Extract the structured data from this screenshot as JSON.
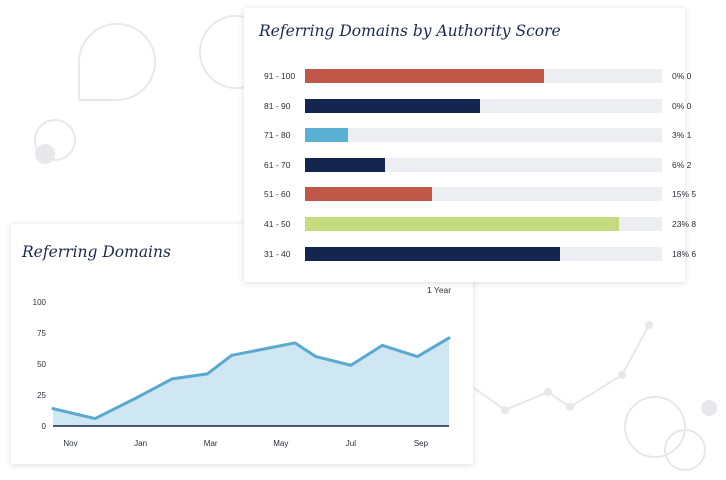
{
  "colors": {
    "salmon": "#c0584a",
    "navy": "#14264f",
    "sky": "#5ab0d3",
    "lime": "#c5dc7e",
    "area_fill": "#cfe7f2",
    "line": "#5aa9cf",
    "track": "#edeef1",
    "decor": "#e6e8ec"
  },
  "authority_chart": {
    "title": "Referring Domains by Authority Score",
    "rows": [
      {
        "label": "91 - 100",
        "fraction": 0.67,
        "color": "salmon",
        "value": "0% 0"
      },
      {
        "label": "81 - 90",
        "fraction": 0.49,
        "color": "navy",
        "value": "0% 0"
      },
      {
        "label": "71 - 80",
        "fraction": 0.12,
        "color": "sky",
        "value": "3% 1"
      },
      {
        "label": "61 - 70",
        "fraction": 0.225,
        "color": "navy",
        "value": "6% 2"
      },
      {
        "label": "51 - 60",
        "fraction": 0.355,
        "color": "salmon",
        "value": "15% 5"
      },
      {
        "label": "41 - 50",
        "fraction": 0.88,
        "color": "lime",
        "value": "23% 8"
      },
      {
        "label": "31 - 40",
        "fraction": 0.715,
        "color": "navy",
        "value": "18% 6"
      }
    ]
  },
  "referring_card": {
    "title": "Referring Domains",
    "range_label": "1 Year"
  },
  "chart_data": {
    "type": "area",
    "title": "Referring Domains",
    "xlabel": "",
    "ylabel": "",
    "ylim": [
      0,
      100
    ],
    "yticks": [
      0,
      25,
      50,
      75,
      100
    ],
    "x_ticks": [
      "Nov",
      "Jan",
      "Mar",
      "May",
      "Jul",
      "Sep"
    ],
    "x_tick_positions": [
      0.5,
      2.5,
      4.5,
      6.5,
      8.5,
      10.5
    ],
    "x": [
      0,
      1.2,
      2.4,
      3.4,
      4.4,
      5.1,
      6.9,
      7.5,
      8.5,
      9.4,
      10.4,
      11.3
    ],
    "y": [
      14,
      6,
      23,
      38,
      42,
      57,
      67,
      56,
      49,
      65,
      56,
      71
    ],
    "grid": false
  }
}
